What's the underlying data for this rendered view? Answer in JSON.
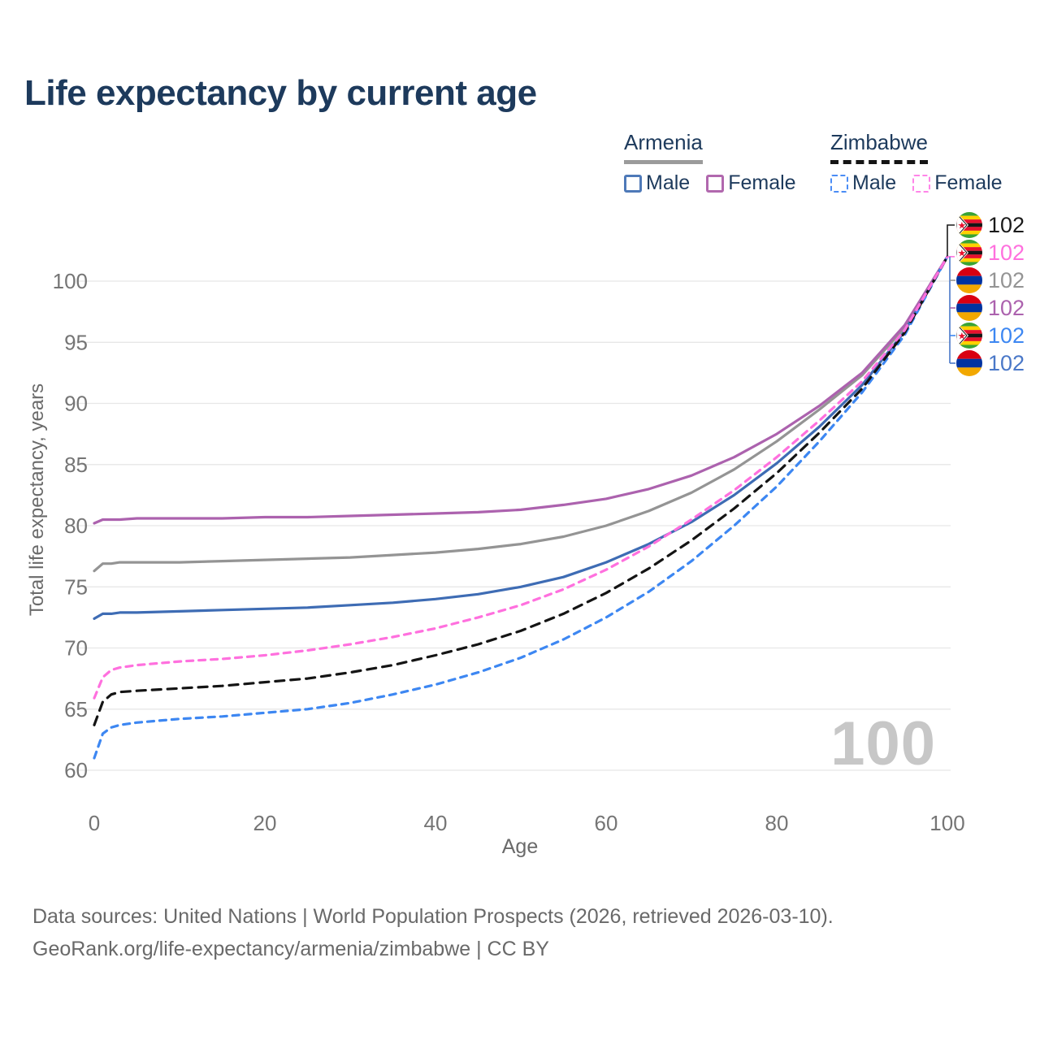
{
  "title": "Life expectancy by current age",
  "watermark": "100",
  "footer": {
    "line1": "Data sources: United Nations | World Population Prospects (2026, retrieved 2026-03-10).",
    "line2": "GeoRank.org/life-expectancy/armenia/zimbabwe | CC BY"
  },
  "legend": {
    "groups": [
      {
        "country": "Armenia",
        "line_style": "solid",
        "underline_color": "#9b9b9b",
        "items": [
          {
            "label": "Male",
            "color": "#3e6cb4",
            "dashed": false
          },
          {
            "label": "Female",
            "color": "#ac62ae",
            "dashed": false
          }
        ]
      },
      {
        "country": "Zimbabwe",
        "line_style": "dashed",
        "underline_color": "#141414",
        "items": [
          {
            "label": "Male",
            "color": "#3d87f2",
            "dashed": true
          },
          {
            "label": "Female",
            "color": "#ff70de",
            "dashed": true
          }
        ]
      }
    ]
  },
  "chart_data": {
    "type": "line",
    "title": "Life expectancy by current age",
    "xlabel": "Age",
    "ylabel": "Total life expectancy, years",
    "xlim": [
      0,
      100
    ],
    "ylim": [
      60,
      102
    ],
    "x_ticks": [
      0,
      20,
      40,
      60,
      80,
      100
    ],
    "y_ticks": [
      60,
      65,
      70,
      75,
      80,
      85,
      90,
      95,
      100
    ],
    "grid": "horizontal",
    "legend_position": "top-right",
    "x": [
      0,
      1,
      2,
      3,
      5,
      10,
      15,
      20,
      25,
      30,
      35,
      40,
      45,
      50,
      55,
      60,
      65,
      70,
      75,
      80,
      85,
      90,
      95,
      100
    ],
    "series": [
      {
        "name": "Armenia Total",
        "country": "Armenia",
        "sex": "total",
        "color": "#949494",
        "dashed": false,
        "values": [
          76.3,
          76.9,
          76.9,
          77.0,
          77.0,
          77.0,
          77.1,
          77.2,
          77.3,
          77.4,
          77.6,
          77.8,
          78.1,
          78.5,
          79.1,
          80.0,
          81.2,
          82.7,
          84.6,
          86.9,
          89.5,
          92.3,
          96.2,
          102.0
        ]
      },
      {
        "name": "Armenia Female",
        "country": "Armenia",
        "sex": "female",
        "color": "#ac62ae",
        "dashed": false,
        "values": [
          80.2,
          80.5,
          80.5,
          80.5,
          80.6,
          80.6,
          80.6,
          80.7,
          80.7,
          80.8,
          80.9,
          81.0,
          81.1,
          81.3,
          81.7,
          82.2,
          83.0,
          84.1,
          85.6,
          87.5,
          89.8,
          92.5,
          96.4,
          102.0
        ]
      },
      {
        "name": "Armenia Male",
        "country": "Armenia",
        "sex": "male",
        "color": "#3e6cb4",
        "dashed": false,
        "values": [
          72.4,
          72.8,
          72.8,
          72.9,
          72.9,
          73.0,
          73.1,
          73.2,
          73.3,
          73.5,
          73.7,
          74.0,
          74.4,
          75.0,
          75.8,
          77.0,
          78.5,
          80.3,
          82.5,
          85.1,
          88.1,
          91.5,
          95.9,
          102.0
        ]
      },
      {
        "name": "Zimbabwe Male",
        "country": "Zimbabwe",
        "sex": "male",
        "color": "#3d87f2",
        "dashed": true,
        "values": [
          61.0,
          63.0,
          63.5,
          63.7,
          63.9,
          64.2,
          64.4,
          64.7,
          65.0,
          65.5,
          66.2,
          67.0,
          68.0,
          69.2,
          70.7,
          72.5,
          74.6,
          77.1,
          80.0,
          83.2,
          86.9,
          90.9,
          95.6,
          102.0
        ]
      },
      {
        "name": "Zimbabwe Total",
        "country": "Zimbabwe",
        "sex": "total",
        "color": "#141414",
        "dashed": true,
        "values": [
          63.7,
          65.6,
          66.2,
          66.4,
          66.5,
          66.7,
          66.9,
          67.2,
          67.5,
          68.0,
          68.6,
          69.4,
          70.3,
          71.4,
          72.8,
          74.5,
          76.5,
          78.8,
          81.4,
          84.3,
          87.6,
          91.2,
          95.8,
          102.0
        ]
      },
      {
        "name": "Zimbabwe Female",
        "country": "Zimbabwe",
        "sex": "female",
        "color": "#ff70de",
        "dashed": true,
        "values": [
          65.9,
          67.6,
          68.2,
          68.4,
          68.6,
          68.9,
          69.1,
          69.4,
          69.8,
          70.3,
          70.9,
          71.6,
          72.5,
          73.5,
          74.8,
          76.4,
          78.3,
          80.5,
          82.9,
          85.6,
          88.6,
          91.8,
          96.0,
          102.0
        ]
      }
    ],
    "end_labels": [
      {
        "flag": "zimbabwe",
        "text": "102",
        "color": "#1a1a1a"
      },
      {
        "flag": "zimbabwe",
        "text": "102",
        "color": "#ff70de"
      },
      {
        "flag": "armenia",
        "text": "102",
        "color": "#949494"
      },
      {
        "flag": "armenia",
        "text": "102",
        "color": "#ac62ae"
      },
      {
        "flag": "zimbabwe",
        "text": "102",
        "color": "#3d87f2"
      },
      {
        "flag": "armenia",
        "text": "102",
        "color": "#4a78c8"
      }
    ]
  }
}
